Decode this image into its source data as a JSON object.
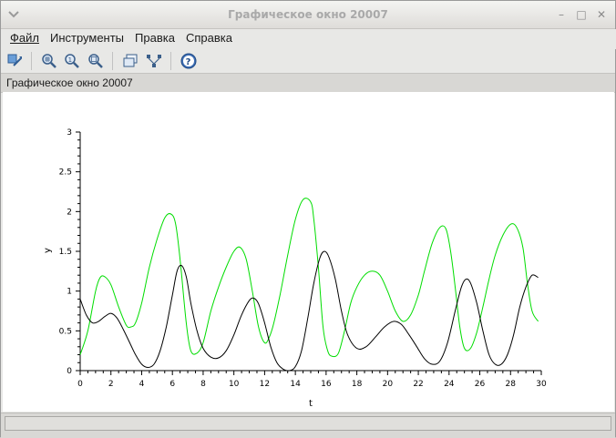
{
  "window": {
    "title": "Графическое окно 20007"
  },
  "menu": [
    {
      "label": "Файл"
    },
    {
      "label": "Инструменты"
    },
    {
      "label": "Правка"
    },
    {
      "label": "Справка"
    }
  ],
  "toolbar": {
    "icons": [
      "rotate-icon",
      "zoom-grid-icon",
      "zoom-in-icon",
      "zoom-out-icon",
      "datatip-icon",
      "tree-icon",
      "help-icon"
    ]
  },
  "header_text": "Графическое окно 20007",
  "colors": {
    "green_series": "#00dd00",
    "black_series": "#000000"
  },
  "chart_data": {
    "type": "line",
    "xlabel": "t",
    "ylabel": "y",
    "xlim": [
      0,
      30
    ],
    "ylim": [
      0,
      3
    ],
    "x_ticks": [
      "0",
      "2",
      "4",
      "6",
      "8",
      "10",
      "12",
      "14",
      "16",
      "18",
      "20",
      "22",
      "24",
      "26",
      "28",
      "30"
    ],
    "y_ticks": [
      "0",
      "0.5",
      "1",
      "1.5",
      "2",
      "2.5",
      "3"
    ],
    "series": [
      {
        "color": "#00dd00",
        "x": [
          0,
          0.5,
          1,
          1.3,
          1.6,
          2,
          2.5,
          3,
          3.3,
          3.6,
          4,
          4.5,
          5,
          5.5,
          5.9,
          6.2,
          6.5,
          6.9,
          7.2,
          7.6,
          8,
          8.5,
          9,
          9.5,
          10,
          10.4,
          10.8,
          11.2,
          11.6,
          12,
          12.3,
          12.6,
          13,
          13.5,
          14,
          14.5,
          15,
          15.2,
          15.5,
          15.8,
          16.1,
          16.4,
          16.8,
          17.2,
          17.6,
          18,
          18.5,
          19,
          19.5,
          20,
          20.5,
          21,
          21.5,
          22,
          22.4,
          22.9,
          23.4,
          23.8,
          24.1,
          24.4,
          24.7,
          25,
          25.4,
          25.8,
          26.2,
          26.6,
          27,
          27.5,
          28,
          28.4,
          28.8,
          29.1,
          29.4,
          29.8
        ],
        "y": [
          0.2,
          0.5,
          1.0,
          1.17,
          1.18,
          1.08,
          0.8,
          0.57,
          0.55,
          0.6,
          0.85,
          1.3,
          1.65,
          1.92,
          1.97,
          1.85,
          1.4,
          0.6,
          0.25,
          0.22,
          0.35,
          0.75,
          1.05,
          1.3,
          1.5,
          1.55,
          1.4,
          1.0,
          0.55,
          0.35,
          0.42,
          0.6,
          0.95,
          1.45,
          1.9,
          2.15,
          2.12,
          1.9,
          1.3,
          0.55,
          0.25,
          0.18,
          0.22,
          0.5,
          0.85,
          1.05,
          1.2,
          1.25,
          1.2,
          1.0,
          0.75,
          0.62,
          0.7,
          0.95,
          1.25,
          1.6,
          1.8,
          1.78,
          1.5,
          1.05,
          0.55,
          0.28,
          0.28,
          0.48,
          0.8,
          1.15,
          1.45,
          1.7,
          1.84,
          1.8,
          1.55,
          1.1,
          0.75,
          0.62
        ]
      },
      {
        "color": "#000000",
        "x": [
          0,
          0.4,
          0.8,
          1.2,
          1.6,
          2,
          2.4,
          2.8,
          3.2,
          3.6,
          4,
          4.4,
          4.8,
          5.2,
          5.6,
          6,
          6.3,
          6.6,
          6.9,
          7.2,
          7.6,
          8,
          8.5,
          9,
          9.5,
          10,
          10.5,
          11,
          11.3,
          11.6,
          12,
          12.4,
          12.8,
          13.2,
          13.6,
          14,
          14.4,
          14.8,
          15.2,
          15.6,
          15.9,
          16.2,
          16.6,
          17,
          17.4,
          18,
          18.6,
          19.2,
          19.8,
          20.4,
          20.9,
          21.4,
          21.9,
          22.4,
          22.9,
          23.4,
          23.9,
          24.4,
          24.8,
          25.1,
          25.4,
          25.8,
          26.2,
          26.6,
          27,
          27.4,
          27.8,
          28.2,
          28.6,
          29,
          29.4,
          29.8
        ],
        "y": [
          0.9,
          0.7,
          0.6,
          0.62,
          0.68,
          0.72,
          0.66,
          0.52,
          0.36,
          0.2,
          0.08,
          0.04,
          0.08,
          0.25,
          0.55,
          0.95,
          1.25,
          1.32,
          1.18,
          0.85,
          0.5,
          0.28,
          0.17,
          0.16,
          0.25,
          0.45,
          0.7,
          0.88,
          0.91,
          0.84,
          0.6,
          0.3,
          0.1,
          0.02,
          0.0,
          0.05,
          0.25,
          0.65,
          1.1,
          1.42,
          1.5,
          1.42,
          1.15,
          0.75,
          0.45,
          0.28,
          0.3,
          0.42,
          0.55,
          0.62,
          0.58,
          0.45,
          0.3,
          0.15,
          0.08,
          0.12,
          0.35,
          0.75,
          1.05,
          1.15,
          1.1,
          0.85,
          0.5,
          0.2,
          0.08,
          0.08,
          0.2,
          0.45,
          0.8,
          1.05,
          1.2,
          1.17
        ]
      }
    ]
  }
}
